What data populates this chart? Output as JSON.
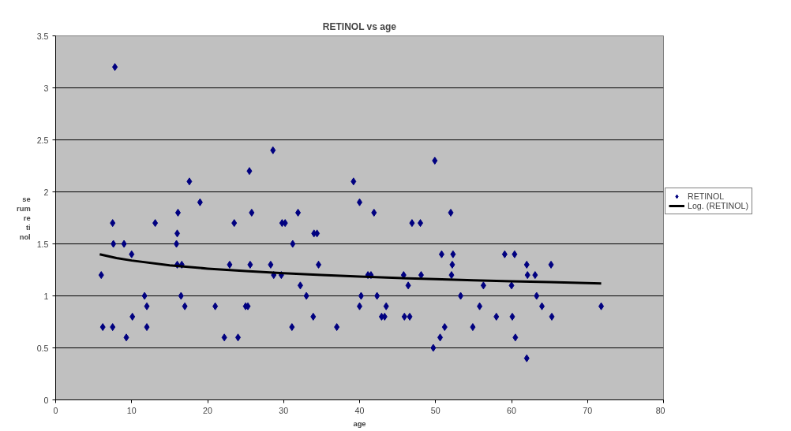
{
  "chart_data": {
    "type": "scatter",
    "title": "RETINOL vs age",
    "xlabel": "age",
    "ylabel": "serum retinol",
    "xlim": [
      0,
      80
    ],
    "xticks": [
      0,
      10,
      20,
      30,
      40,
      50,
      60,
      70,
      80
    ],
    "ylim": [
      0,
      3.5
    ],
    "yticks": [
      0,
      0.5,
      1,
      1.5,
      2,
      2.5,
      3,
      3.5
    ],
    "grid": "y",
    "legend": "right",
    "marker": "diamond",
    "series": [
      {
        "name": "RETINOL",
        "type": "scatter",
        "color": "#000080",
        "x": [
          6,
          6.2,
          7.5,
          7.6,
          7.5,
          7.8,
          9,
          9.3,
          10,
          10.1,
          11.7,
          12,
          12,
          13.1,
          15.9,
          16,
          16.1,
          16,
          16.5,
          16.6,
          17,
          17.6,
          19,
          21,
          22.2,
          22.9,
          23.5,
          24,
          25,
          25.3,
          25.5,
          25.6,
          25.8,
          28.3,
          28.6,
          28.7,
          29.7,
          29.8,
          30.2,
          31.1,
          31.2,
          31.9,
          32.2,
          33,
          33.9,
          34,
          34.4,
          34.6,
          37,
          39.2,
          40,
          40,
          40.2,
          41.1,
          41.5,
          41.9,
          42.3,
          42.9,
          43.3,
          43.5,
          45.8,
          45.9,
          46.4,
          46.6,
          46.9,
          48,
          48.1,
          49.7,
          49.9,
          50.6,
          50.8,
          51.2,
          52,
          52.1,
          52.2,
          52.3,
          53.3,
          54.9,
          55.8,
          56.3,
          58,
          59.1,
          60,
          60.1,
          60.4,
          60.5,
          62,
          62,
          62.1,
          63.1,
          63.3,
          64,
          65.2,
          65.3,
          71.8
        ],
        "values": [
          1.2,
          0.7,
          1.7,
          1.5,
          0.7,
          3.2,
          1.5,
          0.6,
          1.4,
          0.8,
          1.0,
          0.9,
          0.7,
          1.7,
          1.5,
          1.6,
          1.8,
          1.3,
          1.0,
          1.3,
          0.9,
          2.1,
          1.9,
          0.9,
          0.6,
          1.3,
          1.7,
          0.6,
          0.9,
          0.9,
          2.2,
          1.3,
          1.8,
          1.3,
          2.4,
          1.2,
          1.2,
          1.7,
          1.7,
          0.7,
          1.5,
          1.8,
          1.1,
          1.0,
          0.8,
          1.6,
          1.6,
          1.3,
          0.7,
          2.1,
          1.9,
          0.9,
          1.0,
          1.2,
          1.2,
          1.8,
          1.0,
          0.8,
          0.8,
          0.9,
          1.2,
          0.8,
          1.1,
          0.8,
          1.7,
          1.7,
          1.2,
          0.5,
          2.3,
          0.6,
          1.4,
          0.7,
          1.8,
          1.2,
          1.3,
          1.4,
          1.0,
          0.7,
          0.9,
          1.1,
          0.8,
          1.4,
          1.1,
          0.8,
          1.4,
          0.6,
          1.3,
          0.4,
          1.2,
          1.2,
          1.0,
          0.9,
          1.3,
          0.8,
          0.9
        ]
      },
      {
        "name": "Log. (RETINOL)",
        "type": "line",
        "color": "#000000",
        "marker": "none",
        "line_style": "solid",
        "x": [
          5.8,
          8,
          10,
          15,
          20,
          25,
          30,
          35,
          40,
          45,
          50,
          55,
          60,
          65,
          71.8
        ],
        "values": [
          1.4,
          1.364,
          1.34,
          1.294,
          1.262,
          1.238,
          1.218,
          1.2,
          1.186,
          1.172,
          1.161,
          1.15,
          1.14,
          1.132,
          1.12
        ]
      }
    ]
  }
}
